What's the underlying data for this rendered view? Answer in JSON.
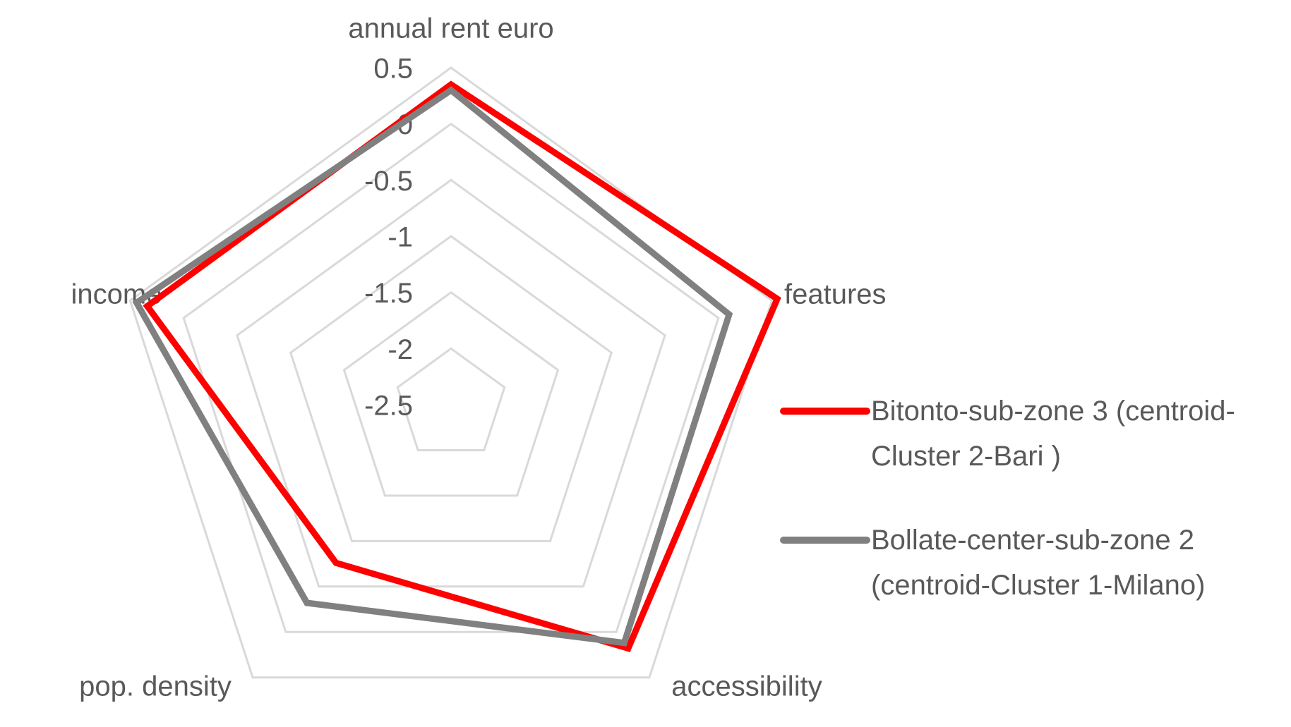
{
  "chart_data": {
    "type": "radar",
    "categories": [
      "annual rent euro",
      "features",
      "accessibility",
      "pop. density",
      "income"
    ],
    "series": [
      {
        "name": "Bitonto-sub-zone 3 (centroid-Cluster 2-Bari )",
        "color": "#ff0000",
        "values": [
          0.35,
          0.55,
          0.18,
          -0.76,
          0.34
        ]
      },
      {
        "name": "Bollate-center-sub-zone 2 (centroid-Cluster 1-Milano)",
        "color": "#808080",
        "values": [
          0.3,
          0.1,
          0.12,
          -0.32,
          0.44
        ]
      }
    ],
    "ylim": [
      -2.5,
      0.5
    ],
    "yticks": [
      0.5,
      0,
      -0.5,
      -1,
      -1.5,
      -2,
      -2.5
    ],
    "grid": true,
    "legend": "right"
  }
}
